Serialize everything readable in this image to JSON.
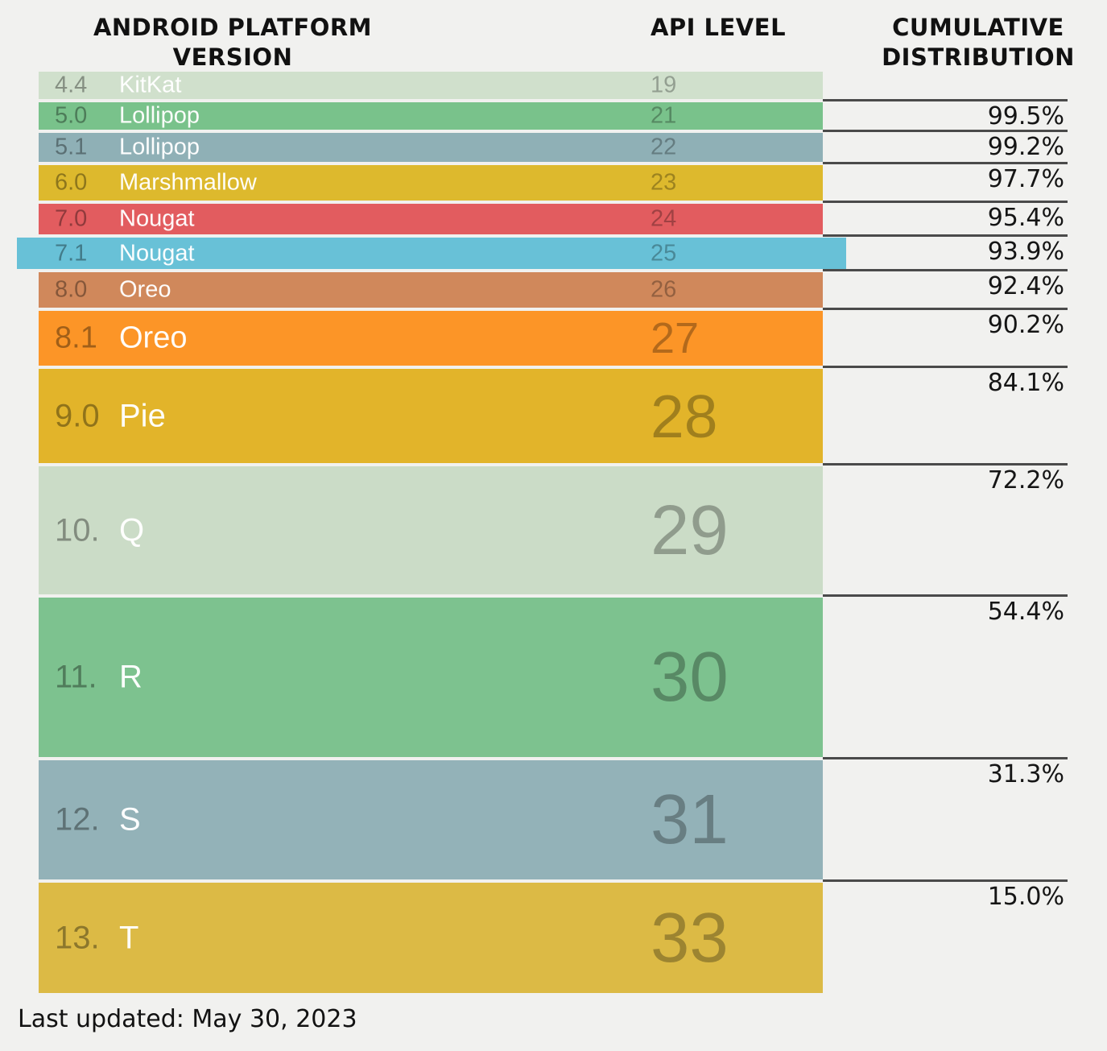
{
  "headers": {
    "platform_line1": "ANDROID PLATFORM",
    "platform_line2": "VERSION",
    "api": "API LEVEL",
    "cumulative_line1": "CUMULATIVE",
    "cumulative_line2": "DISTRIBUTION"
  },
  "footer": {
    "last_updated": "Last updated: May 30, 2023"
  },
  "colors": {
    "background": "#f1f1ef",
    "line": "#4a4a4a",
    "header_text": "#111111",
    "name_text": "#ffffff"
  },
  "chart_data": {
    "type": "table",
    "title": "Android Platform Version / API Level cumulative distribution",
    "columns": [
      "ANDROID PLATFORM VERSION",
      "API LEVEL",
      "CUMULATIVE DISTRIBUTION"
    ],
    "rows": [
      {
        "version": "4.4",
        "name": "KitKat",
        "api": "19",
        "cumulative": null,
        "color": "#d0e0cc",
        "highlighted": false
      },
      {
        "version": "5.0",
        "name": "Lollipop",
        "api": "21",
        "cumulative": "99.5%",
        "color": "#79c28b",
        "highlighted": false
      },
      {
        "version": "5.1",
        "name": "Lollipop",
        "api": "22",
        "cumulative": "99.2%",
        "color": "#8fb0b6",
        "highlighted": false
      },
      {
        "version": "6.0",
        "name": "Marshmallow",
        "api": "23",
        "cumulative": "97.7%",
        "color": "#ddb92d",
        "highlighted": false
      },
      {
        "version": "7.0",
        "name": "Nougat",
        "api": "24",
        "cumulative": "95.4%",
        "color": "#e25c5f",
        "highlighted": false
      },
      {
        "version": "7.1",
        "name": "Nougat",
        "api": "25",
        "cumulative": "93.9%",
        "color": "#68c1d7",
        "highlighted": true
      },
      {
        "version": "8.0",
        "name": "Oreo",
        "api": "26",
        "cumulative": "92.4%",
        "color": "#d0885b",
        "highlighted": false
      },
      {
        "version": "8.1",
        "name": "Oreo",
        "api": "27",
        "cumulative": "90.2%",
        "color": "#fc9527",
        "highlighted": false
      },
      {
        "version": "9.0",
        "name": "Pie",
        "api": "28",
        "cumulative": "84.1%",
        "color": "#e2b42a",
        "highlighted": false
      },
      {
        "version": "10.",
        "name": "Q",
        "api": "29",
        "cumulative": "72.2%",
        "color": "#cbdcc7",
        "highlighted": false
      },
      {
        "version": "11.",
        "name": "R",
        "api": "30",
        "cumulative": "54.4%",
        "color": "#7dc28f",
        "highlighted": false
      },
      {
        "version": "12.",
        "name": "S",
        "api": "31",
        "cumulative": "31.3%",
        "color": "#93b2b8",
        "highlighted": false
      },
      {
        "version": "13.",
        "name": "T",
        "api": "33",
        "cumulative": "15.0%",
        "color": "#dcba45",
        "highlighted": false
      }
    ]
  }
}
